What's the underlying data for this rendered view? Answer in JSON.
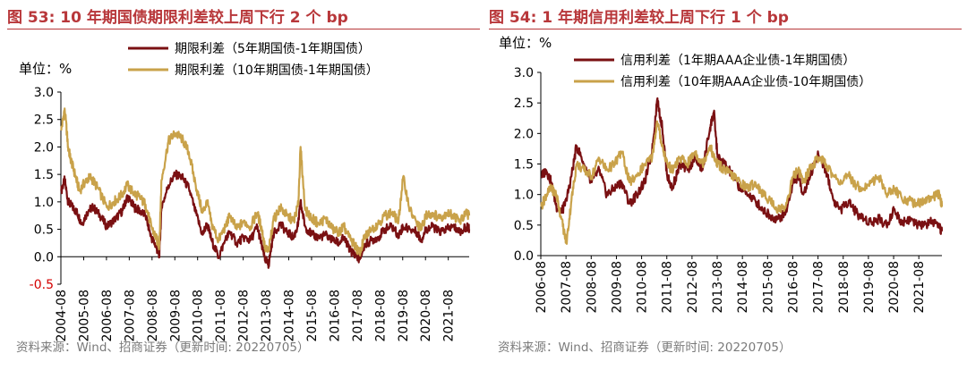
{
  "source_note": "资料来源：Wind、招商证券（更新时间: 20220705）",
  "chart_data": [
    {
      "type": "line",
      "title": "图 53:  10 年期国债期限利差较上周下行 2 个 bp",
      "ylabel": "单位：%",
      "ylim": [
        -0.5,
        3.0
      ],
      "yticks": [
        "3.0",
        "2.5",
        "2.0",
        "1.5",
        "1.0",
        "0.5",
        "0.0",
        "-0.5"
      ],
      "xlim": [
        "2004-08",
        "2022-07"
      ],
      "xticks": [
        "2004-08",
        "2005-08",
        "2006-08",
        "2007-08",
        "2008-08",
        "2009-08",
        "2010-08",
        "2011-08",
        "2012-08",
        "2013-08",
        "2014-08",
        "2015-08",
        "2016-08",
        "2017-08",
        "2018-08",
        "2019-08",
        "2020-08",
        "2021-08"
      ],
      "legend_position": "top-right",
      "series": [
        {
          "name": "期限利差（5年期国债-1年期国债）",
          "color": "#7a1012",
          "x": [
            2004.6,
            2004.75,
            2004.9,
            2005.1,
            2005.3,
            2005.5,
            2005.8,
            2006.0,
            2006.3,
            2006.6,
            2007.0,
            2007.3,
            2007.5,
            2007.8,
            2008.0,
            2008.3,
            2008.55,
            2008.75,
            2008.9,
            2009.0,
            2009.3,
            2009.6,
            2009.9,
            2010.2,
            2010.5,
            2010.8,
            2011.0,
            2011.2,
            2011.5,
            2011.8,
            2012.0,
            2012.3,
            2012.6,
            2012.9,
            2013.2,
            2013.4,
            2013.55,
            2013.7,
            2013.9,
            2014.2,
            2014.5,
            2014.8,
            2015.0,
            2015.1,
            2015.3,
            2015.6,
            2015.9,
            2016.2,
            2016.5,
            2016.8,
            2017.0,
            2017.3,
            2017.5,
            2017.7,
            2017.9,
            2018.2,
            2018.5,
            2018.8,
            2019.1,
            2019.4,
            2019.6,
            2019.9,
            2020.2,
            2020.4,
            2020.6,
            2020.9,
            2021.2,
            2021.5,
            2021.8,
            2022.1,
            2022.4,
            2022.5
          ],
          "values": [
            1.2,
            1.4,
            1.0,
            0.9,
            0.8,
            0.6,
            0.85,
            0.9,
            0.75,
            0.55,
            0.7,
            0.85,
            1.1,
            0.9,
            0.85,
            0.75,
            0.35,
            0.2,
            0.0,
            0.9,
            1.3,
            1.5,
            1.45,
            1.25,
            0.8,
            0.4,
            0.6,
            0.3,
            0.0,
            0.3,
            0.45,
            0.25,
            0.35,
            0.3,
            0.55,
            0.2,
            -0.05,
            -0.15,
            0.4,
            0.6,
            0.45,
            0.35,
            0.6,
            1.0,
            0.55,
            0.4,
            0.35,
            0.4,
            0.3,
            0.25,
            0.35,
            0.1,
            0.05,
            -0.05,
            0.2,
            0.3,
            0.35,
            0.5,
            0.55,
            0.4,
            0.55,
            0.5,
            0.45,
            0.3,
            0.5,
            0.55,
            0.45,
            0.5,
            0.55,
            0.45,
            0.55,
            0.5
          ]
        },
        {
          "name": "期限利差（10年期国债-1年期国债）",
          "color": "#c9a24a",
          "x": [
            2004.6,
            2004.75,
            2004.9,
            2005.0,
            2005.2,
            2005.4,
            2005.7,
            2005.9,
            2006.2,
            2006.6,
            2006.9,
            2007.2,
            2007.5,
            2007.8,
            2008.0,
            2008.3,
            2008.55,
            2008.75,
            2008.9,
            2009.0,
            2009.3,
            2009.6,
            2009.9,
            2010.2,
            2010.5,
            2010.8,
            2011.0,
            2011.2,
            2011.5,
            2011.8,
            2012.0,
            2012.3,
            2012.6,
            2012.9,
            2013.2,
            2013.4,
            2013.55,
            2013.7,
            2013.9,
            2014.2,
            2014.5,
            2014.8,
            2015.0,
            2015.1,
            2015.3,
            2015.6,
            2015.9,
            2016.2,
            2016.5,
            2016.8,
            2017.0,
            2017.3,
            2017.5,
            2017.7,
            2017.9,
            2018.2,
            2018.5,
            2018.8,
            2019.1,
            2019.4,
            2019.6,
            2019.9,
            2020.2,
            2020.4,
            2020.6,
            2020.9,
            2021.2,
            2021.5,
            2021.8,
            2022.1,
            2022.4,
            2022.5
          ],
          "values": [
            2.3,
            2.7,
            2.0,
            1.8,
            1.5,
            1.2,
            1.4,
            1.45,
            1.25,
            0.9,
            1.0,
            1.1,
            1.3,
            1.15,
            1.1,
            0.95,
            0.55,
            0.35,
            0.2,
            1.4,
            2.1,
            2.25,
            2.15,
            1.9,
            1.3,
            0.8,
            1.0,
            0.6,
            0.3,
            0.55,
            0.75,
            0.5,
            0.65,
            0.55,
            0.8,
            0.5,
            0.15,
            0.1,
            0.65,
            0.9,
            0.75,
            0.65,
            0.95,
            2.0,
            0.85,
            0.7,
            0.6,
            0.7,
            0.5,
            0.45,
            0.55,
            0.3,
            0.2,
            0.05,
            0.35,
            0.5,
            0.6,
            0.75,
            0.8,
            0.65,
            1.45,
            0.85,
            0.6,
            0.5,
            0.75,
            0.8,
            0.7,
            0.8,
            0.75,
            0.65,
            0.8,
            0.75
          ]
        }
      ]
    },
    {
      "type": "line",
      "title": "图 54:  1 年期信用利差较上周下行 1 个 bp",
      "ylabel": "单位：%",
      "ylim": [
        0.0,
        3.0
      ],
      "yticks": [
        "3.0",
        "2.5",
        "2.0",
        "1.5",
        "1.0",
        "0.5",
        "0.0"
      ],
      "xlim": [
        "2006-08",
        "2022-07"
      ],
      "xticks": [
        "2006-08",
        "2007-08",
        "2008-08",
        "2009-08",
        "2010-08",
        "2011-08",
        "2012-08",
        "2013-08",
        "2014-08",
        "2015-08",
        "2016-08",
        "2017-08",
        "2018-08",
        "2019-08",
        "2020-08",
        "2021-08"
      ],
      "legend_position": "top-right",
      "series": [
        {
          "name": "信用利差（1年期AAA企业债-1年期国债）",
          "color": "#7a1012",
          "x": [
            2006.6,
            2006.8,
            2007.0,
            2007.2,
            2007.4,
            2007.6,
            2007.8,
            2008.0,
            2008.3,
            2008.6,
            2008.9,
            2009.2,
            2009.5,
            2009.8,
            2010.1,
            2010.4,
            2010.7,
            2011.0,
            2011.2,
            2011.4,
            2011.6,
            2011.8,
            2012.1,
            2012.4,
            2012.7,
            2013.0,
            2013.3,
            2013.45,
            2013.6,
            2013.9,
            2014.2,
            2014.5,
            2014.8,
            2015.1,
            2015.4,
            2015.7,
            2016.0,
            2016.3,
            2016.6,
            2016.8,
            2017.0,
            2017.3,
            2017.6,
            2017.9,
            2018.2,
            2018.5,
            2018.8,
            2019.1,
            2019.4,
            2019.7,
            2020.0,
            2020.3,
            2020.6,
            2020.9,
            2021.2,
            2021.5,
            2021.8,
            2022.1,
            2022.4,
            2022.5
          ],
          "values": [
            1.3,
            1.4,
            1.2,
            0.8,
            0.7,
            0.9,
            1.3,
            1.8,
            1.5,
            1.2,
            1.4,
            1.0,
            1.1,
            1.2,
            0.85,
            1.0,
            1.2,
            1.7,
            2.55,
            2.1,
            1.3,
            1.1,
            1.5,
            1.4,
            1.6,
            1.4,
            2.1,
            2.35,
            1.6,
            1.5,
            1.3,
            1.1,
            1.0,
            0.9,
            0.75,
            0.65,
            0.6,
            0.7,
            1.2,
            1.3,
            1.0,
            1.35,
            1.65,
            1.4,
            0.9,
            0.75,
            0.9,
            0.7,
            0.6,
            0.55,
            0.6,
            0.5,
            0.75,
            0.55,
            0.6,
            0.5,
            0.5,
            0.55,
            0.45,
            0.4
          ]
        },
        {
          "name": "信用利差（10年期AAA企业债-10年期国债）",
          "color": "#c9a24a",
          "x": [
            2006.6,
            2006.8,
            2007.0,
            2007.2,
            2007.4,
            2007.6,
            2007.8,
            2008.0,
            2008.3,
            2008.6,
            2008.9,
            2009.2,
            2009.5,
            2009.8,
            2010.1,
            2010.4,
            2010.7,
            2011.0,
            2011.2,
            2011.4,
            2011.6,
            2011.8,
            2012.1,
            2012.4,
            2012.7,
            2013.0,
            2013.3,
            2013.45,
            2013.6,
            2013.9,
            2014.2,
            2014.5,
            2014.8,
            2015.1,
            2015.4,
            2015.7,
            2016.0,
            2016.3,
            2016.6,
            2016.8,
            2017.0,
            2017.3,
            2017.6,
            2017.9,
            2018.2,
            2018.5,
            2018.8,
            2019.1,
            2019.4,
            2019.7,
            2020.0,
            2020.3,
            2020.6,
            2020.9,
            2021.2,
            2021.5,
            2021.8,
            2022.1,
            2022.4,
            2022.5
          ],
          "values": [
            0.8,
            1.0,
            1.1,
            1.0,
            0.6,
            0.2,
            0.9,
            1.5,
            1.4,
            1.3,
            1.6,
            1.4,
            1.5,
            1.7,
            1.2,
            1.3,
            1.5,
            1.6,
            2.2,
            1.8,
            1.5,
            1.4,
            1.6,
            1.5,
            1.7,
            1.5,
            1.8,
            1.6,
            1.5,
            1.4,
            1.3,
            1.2,
            1.1,
            1.2,
            1.0,
            0.9,
            0.75,
            0.8,
            1.3,
            1.4,
            1.2,
            1.45,
            1.6,
            1.5,
            1.3,
            1.2,
            1.3,
            1.15,
            1.1,
            1.2,
            1.3,
            1.0,
            1.1,
            0.95,
            0.9,
            0.85,
            0.9,
            0.95,
            1.0,
            0.8
          ]
        }
      ]
    }
  ]
}
